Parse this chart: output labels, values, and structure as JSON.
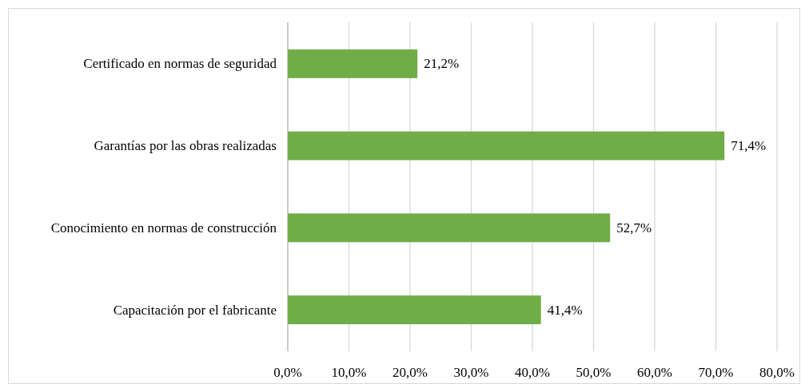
{
  "chart_data": {
    "type": "bar",
    "orientation": "horizontal",
    "categories": [
      "Certificado en normas de seguridad",
      "Garantías por las obras realizadas",
      "Conocimiento en normas de construcción",
      "Capacitación por el fabricante"
    ],
    "values": [
      21.2,
      71.4,
      52.7,
      41.4
    ],
    "value_labels": [
      "21,2%",
      "71,4%",
      "52,7%",
      "41,4%"
    ],
    "color": "#70ad47",
    "xlim": [
      0,
      80
    ],
    "xticks": [
      {
        "value": 0,
        "label": "0,0%"
      },
      {
        "value": 10,
        "label": "10,0%"
      },
      {
        "value": 20,
        "label": "20,0%"
      },
      {
        "value": 30,
        "label": "30,0%"
      },
      {
        "value": 40,
        "label": "40,0%"
      },
      {
        "value": 50,
        "label": "50,0%"
      },
      {
        "value": 60,
        "label": "60,0%"
      },
      {
        "value": 70,
        "label": "70,0%"
      },
      {
        "value": 80,
        "label": "80,0%"
      }
    ],
    "grid": "x"
  }
}
